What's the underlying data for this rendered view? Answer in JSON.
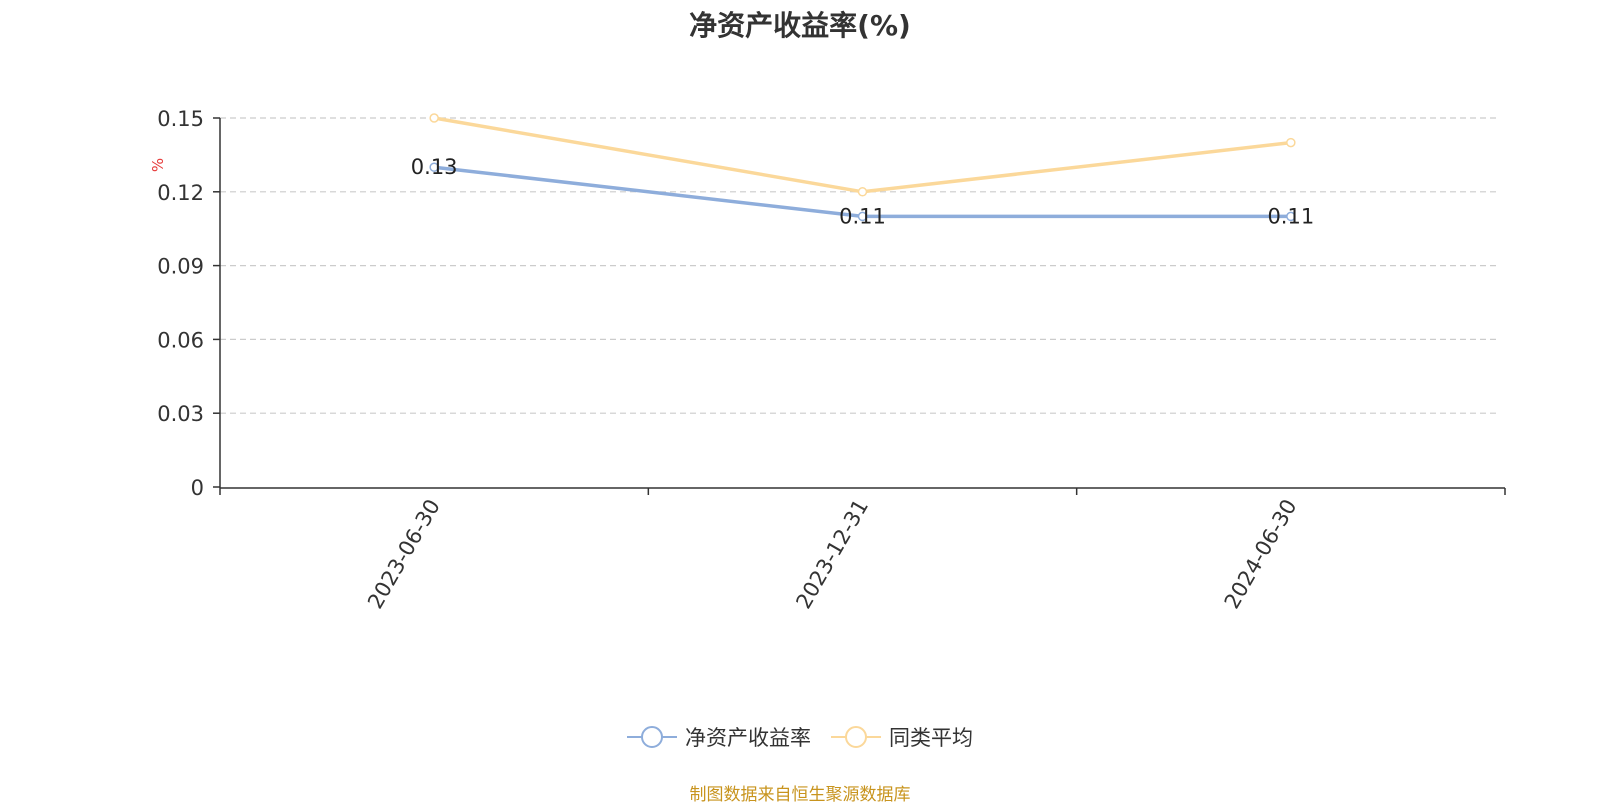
{
  "chart_data": {
    "type": "line",
    "title": "净资产收益率(%)",
    "ylabel": "%",
    "categories": [
      "2023-06-30",
      "2023-12-31",
      "2024-06-30"
    ],
    "ylim": [
      0,
      0.15
    ],
    "yticks": [
      "0",
      "0.03",
      "0.06",
      "0.09",
      "0.12",
      "0.15"
    ],
    "grid": true,
    "legend_position": "bottom",
    "series": [
      {
        "name": "净资产收益率",
        "values": [
          0.13,
          0.11,
          0.11
        ],
        "labels": [
          "0.13",
          "0.11",
          "0.11"
        ],
        "color": "#8eaddb"
      },
      {
        "name": "同类平均",
        "values": [
          0.15,
          0.12,
          0.14
        ],
        "labels": [],
        "color": "#fbd89a"
      }
    ]
  },
  "footer": {
    "source": "制图数据来自恒生聚源数据库"
  }
}
